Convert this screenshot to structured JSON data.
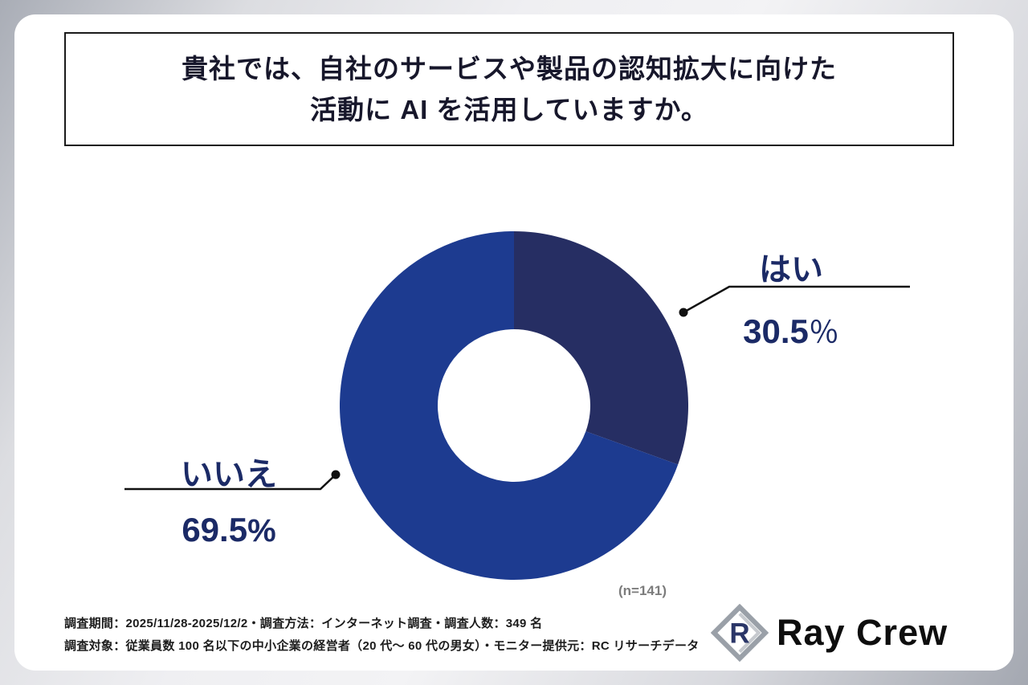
{
  "title": {
    "line1": "貴社では、自社のサービスや製品の認知拡大に向けた",
    "line2": "活動に AI を活用していますか。"
  },
  "chart_data": {
    "type": "pie",
    "donut": true,
    "title": "貴社では、自社のサービスや製品の認知拡大に向けた活動に AI を活用していますか。",
    "labels": [
      "はい",
      "いいえ"
    ],
    "values": [
      30.5,
      69.5
    ],
    "colors": [
      "#262e63",
      "#1d3b90"
    ],
    "start_angle_deg": 0,
    "direction": "clockwise",
    "inner_hole_color": "#ffffff",
    "sample_note": "(n=141)"
  },
  "callouts": {
    "yes": {
      "label": "はい",
      "num": "30.5",
      "pct": "％"
    },
    "no": {
      "label": "いいえ",
      "num": "69.5",
      "pct": "%"
    }
  },
  "note": {
    "n": "(n=141)"
  },
  "footer": {
    "line1": "調査期間：2025/11/28-2025/12/2・調査方法：インターネット調査・調査人数：349 名",
    "line2": "調査対象：従業員数 100 名以下の中小企業の経営者（20 代〜 60 代の男女）・モニター提供元：RC リサーチデータ"
  },
  "logo": {
    "text": "Ray Crew",
    "mark": "raycrew-mark",
    "mark_color": "#2b3668",
    "mark_outline": "#9aa0a8"
  }
}
